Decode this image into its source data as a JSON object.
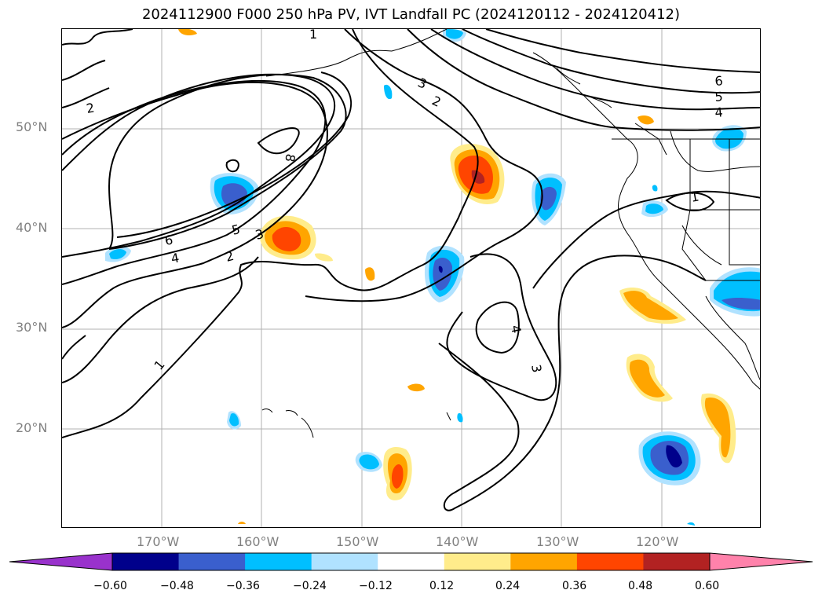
{
  "title": "2024112900 F000 250 hPa PV, IVT Landfall PC (2024120112 - 2024120412)",
  "map": {
    "lon_range": [
      -180,
      -110
    ],
    "lat_range": [
      10,
      60
    ],
    "lat_labels": [
      {
        "lat": 50,
        "text": "50°N"
      },
      {
        "lat": 40,
        "text": "40°N"
      },
      {
        "lat": 30,
        "text": "30°N"
      },
      {
        "lat": 20,
        "text": "20°N"
      }
    ],
    "lon_labels": [
      {
        "lon": -170,
        "text": "170°W"
      },
      {
        "lon": -160,
        "text": "160°W"
      },
      {
        "lon": -150,
        "text": "150°W"
      },
      {
        "lon": -140,
        "text": "140°W"
      },
      {
        "lon": -130,
        "text": "130°W"
      },
      {
        "lon": -120,
        "text": "120°W"
      }
    ],
    "contour_labels": [
      "1",
      "2",
      "3",
      "4",
      "5",
      "6",
      "8",
      "1",
      "2",
      "3",
      "4",
      "5",
      "6",
      "3",
      "4",
      "1",
      "2"
    ]
  },
  "colorbar": {
    "ticks": [
      "−0.60",
      "−0.48",
      "−0.36",
      "−0.24",
      "−0.12",
      "0.12",
      "0.24",
      "0.36",
      "0.48",
      "0.60"
    ],
    "colors": [
      "#9932cc",
      "#00008b",
      "#3a5fcd",
      "#00bfff",
      "#b0e2ff",
      "#ffffff",
      "#ffec8b",
      "#ffa500",
      "#ff4500",
      "#b22222",
      "#ff82ab"
    ]
  }
}
